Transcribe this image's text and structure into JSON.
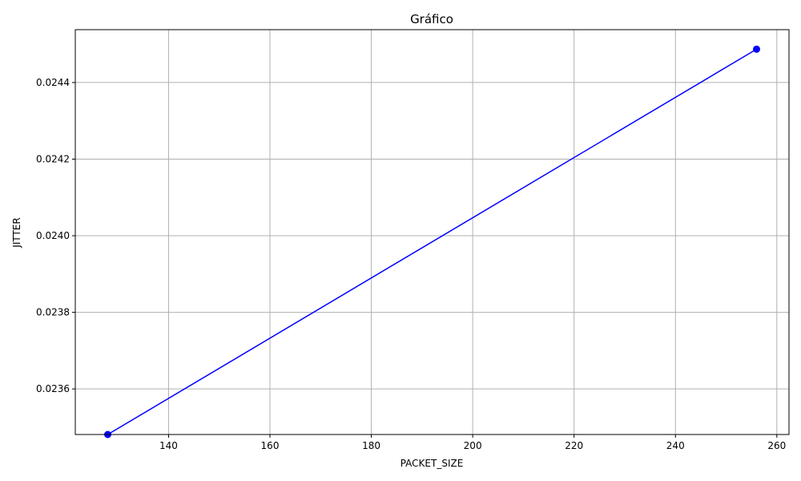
{
  "chart_data": {
    "type": "line",
    "title": "Gráfico",
    "xlabel": "PACKET_SIZE",
    "ylabel": "JITTER",
    "xlim": [
      121.6,
      262.4
    ],
    "ylim": [
      0.023481,
      0.024538
    ],
    "x_ticks": [
      140,
      160,
      180,
      200,
      220,
      240,
      260
    ],
    "x_tick_labels": [
      "140",
      "160",
      "180",
      "200",
      "220",
      "240",
      "260"
    ],
    "y_ticks": [
      0.0236,
      0.0238,
      0.024,
      0.0242,
      0.0244
    ],
    "y_tick_labels": [
      "0.0236",
      "0.0238",
      "0.0240",
      "0.0242",
      "0.0244"
    ],
    "grid": true,
    "series": [
      {
        "color": "#0000ff",
        "marker": "circle",
        "x": [
          128,
          256
        ],
        "y": [
          0.023481,
          0.024487
        ]
      }
    ]
  }
}
